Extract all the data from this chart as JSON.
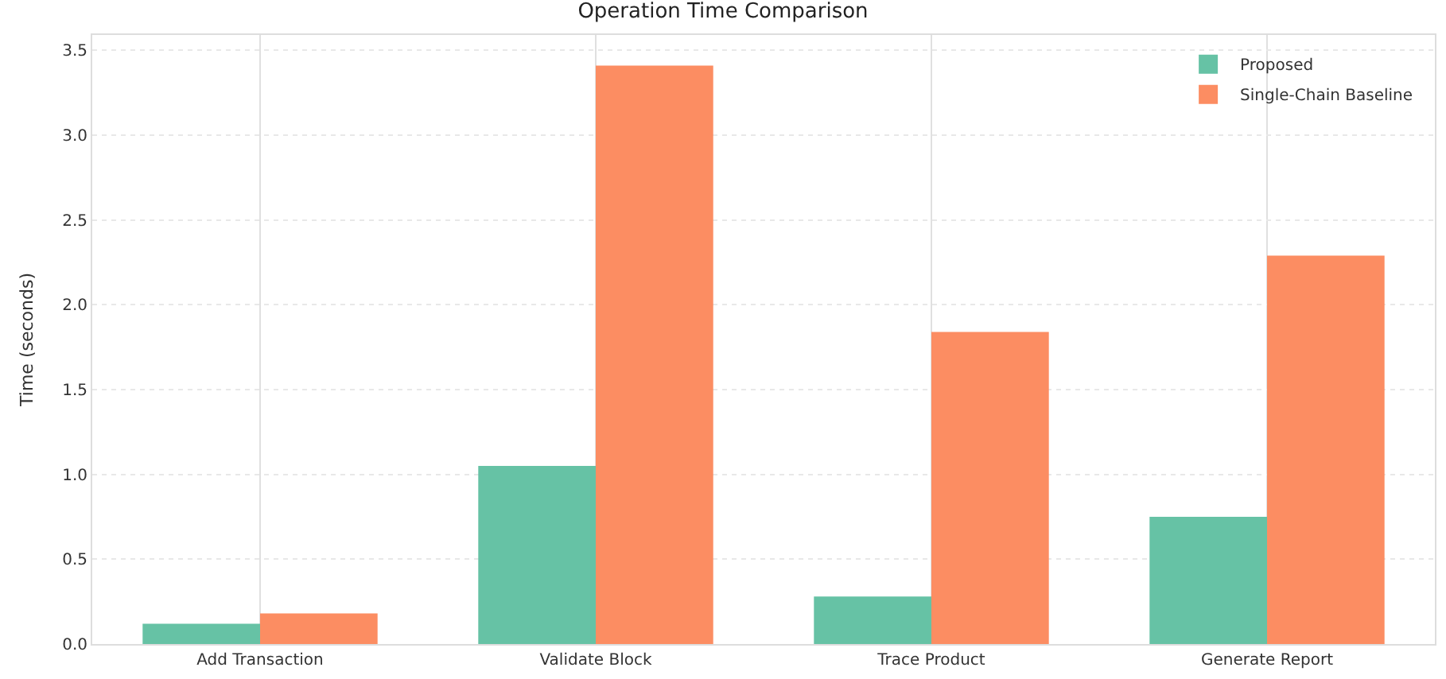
{
  "chart_data": {
    "type": "bar",
    "title": "Operation Time Comparison",
    "ylabel": "Time (seconds)",
    "categories": [
      "Add Transaction",
      "Validate Block",
      "Trace Product",
      "Generate Report"
    ],
    "series": [
      {
        "name": "Proposed",
        "color": "#66c2a5",
        "values": [
          0.12,
          1.05,
          0.28,
          0.75
        ]
      },
      {
        "name": "Single-Chain Baseline",
        "color": "#fc8d62",
        "values": [
          0.18,
          3.41,
          1.84,
          2.29
        ]
      }
    ],
    "ylim": [
      0,
      3.59
    ],
    "yticks": [
      {
        "value": 0,
        "label": "0.0"
      },
      0.5,
      {
        "value": 1,
        "label": "1.0"
      },
      1.5,
      {
        "value": 2,
        "label": "2.0"
      },
      2.5,
      {
        "value": 3,
        "label": "3.0"
      },
      3.5
    ],
    "grid": true,
    "legend": "top right"
  }
}
